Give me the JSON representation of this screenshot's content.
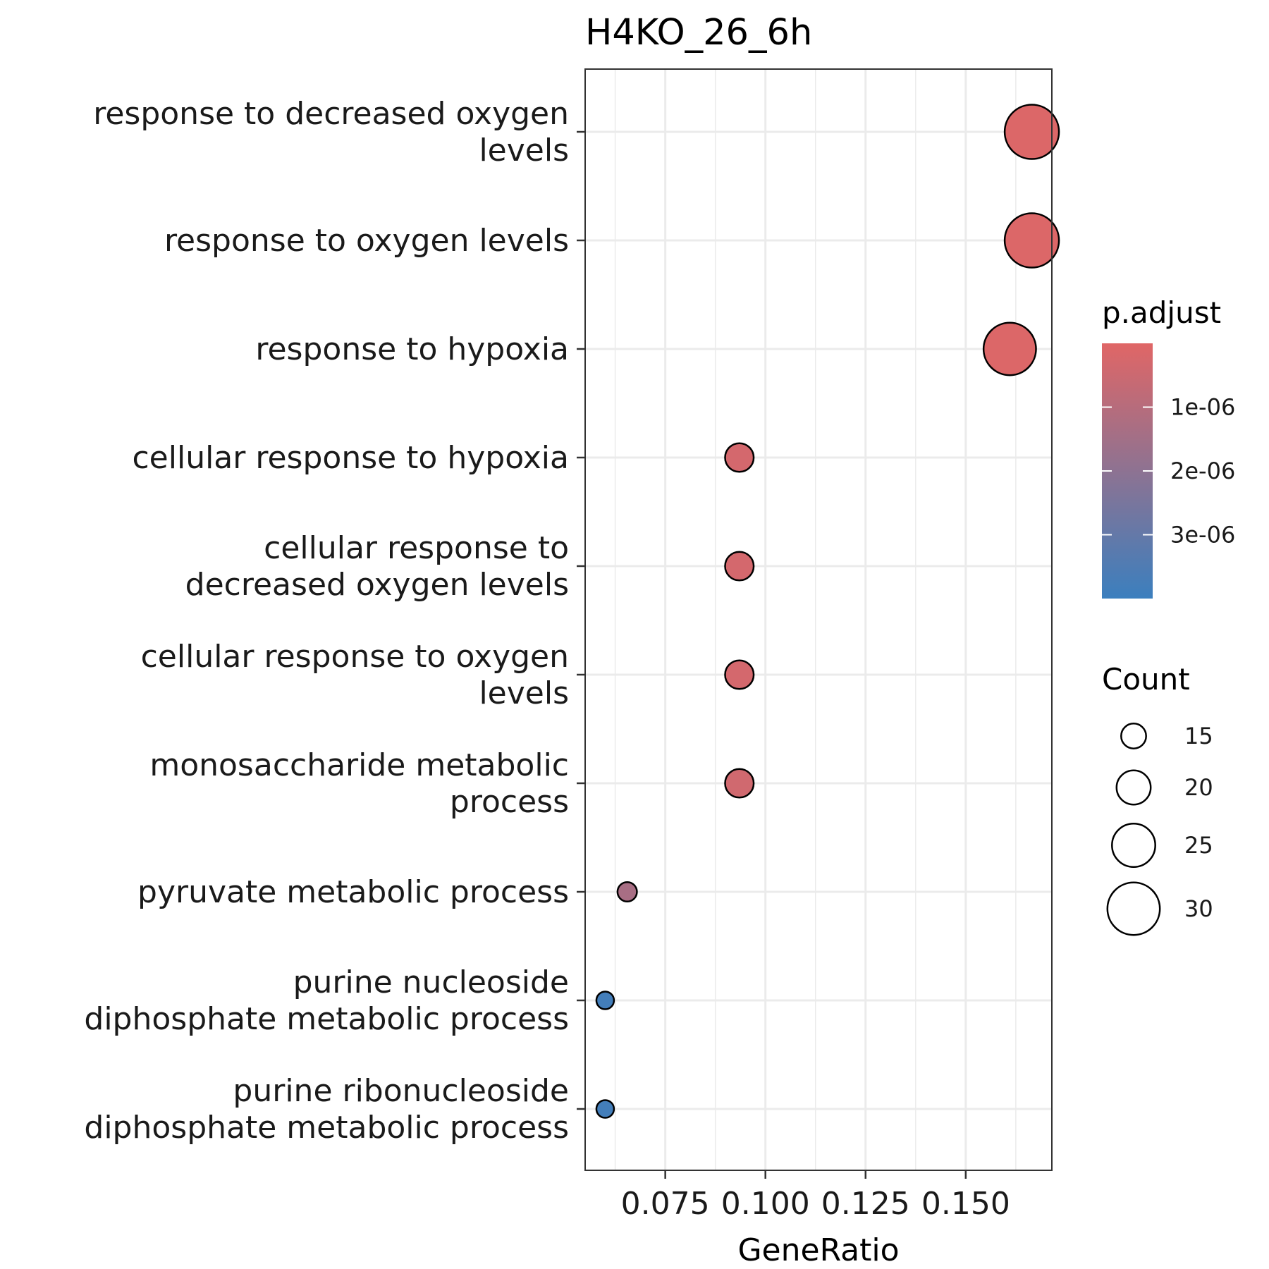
{
  "chart_data": {
    "type": "scatter",
    "title": "H4KO_26_6h",
    "xlabel": "GeneRatio",
    "ylabel": "",
    "xlim": [
      0.055,
      0.1715
    ],
    "x_ticks": [
      0.075,
      0.1,
      0.125,
      0.15
    ],
    "x_tick_labels": [
      "0.075",
      "0.100",
      "0.125",
      "0.150"
    ],
    "grid": true,
    "categories": [
      [
        "response to decreased oxygen",
        "levels"
      ],
      [
        "response to oxygen levels"
      ],
      [
        "response to hypoxia"
      ],
      [
        "cellular response to hypoxia"
      ],
      [
        "cellular response to",
        "decreased oxygen levels"
      ],
      [
        "cellular response to oxygen",
        "levels"
      ],
      [
        "monosaccharide metabolic",
        "process"
      ],
      [
        "pyruvate metabolic process"
      ],
      [
        "purine nucleoside",
        "diphosphate metabolic process"
      ],
      [
        "purine ribonucleoside",
        "diphosphate metabolic process"
      ]
    ],
    "points": [
      {
        "x": 0.1665,
        "count": 31,
        "p_adjust": 1e-07
      },
      {
        "x": 0.1665,
        "count": 31,
        "p_adjust": 1e-07
      },
      {
        "x": 0.161,
        "count": 30,
        "p_adjust": 1e-07
      },
      {
        "x": 0.0935,
        "count": 17,
        "p_adjust": 3e-07
      },
      {
        "x": 0.0935,
        "count": 17,
        "p_adjust": 3e-07
      },
      {
        "x": 0.0935,
        "count": 17,
        "p_adjust": 3e-07
      },
      {
        "x": 0.0935,
        "count": 17,
        "p_adjust": 4e-07
      },
      {
        "x": 0.0655,
        "count": 12,
        "p_adjust": 1.35e-06
      },
      {
        "x": 0.06,
        "count": 11,
        "p_adjust": 3.8e-06
      },
      {
        "x": 0.06,
        "count": 11,
        "p_adjust": 3.8e-06
      }
    ],
    "color_legend": {
      "title": "p.adjust",
      "low_color": "#E06666",
      "high_color": "#3B7FBE",
      "min": 0.0,
      "max": 4e-06,
      "ticks": [
        1e-06,
        2e-06,
        3e-06
      ],
      "tick_labels": [
        "1e-06",
        "2e-06",
        "3e-06"
      ]
    },
    "size_legend": {
      "title": "Count",
      "values": [
        15,
        20,
        25,
        30
      ],
      "labels": [
        "15",
        "20",
        "25",
        "30"
      ]
    }
  }
}
